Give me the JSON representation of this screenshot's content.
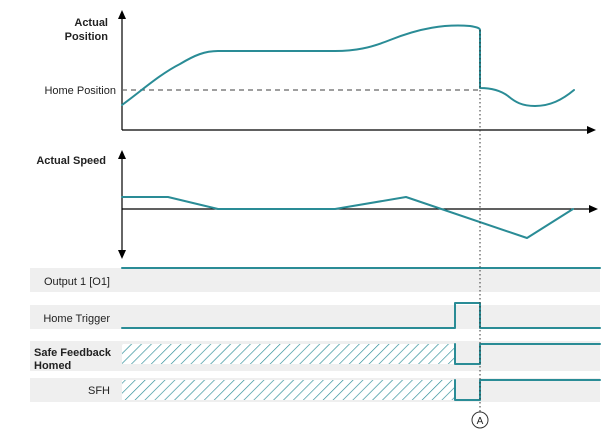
{
  "colors": {
    "signal": "#2a8c96",
    "band": "#efefef",
    "axis": "#000000",
    "dashed": "#666666",
    "hatch": "#2a8c96"
  },
  "position_chart": {
    "ylabel_line1": "Actual",
    "ylabel_line2": "Position",
    "ref_label": "Home Position"
  },
  "speed_chart": {
    "ylabel": "Actual Speed"
  },
  "rows": {
    "output": "Output 1 [O1]",
    "trigger": "Home Trigger",
    "sfh_homed_line1": "Safe Feedback",
    "sfh_homed_line2": "Homed",
    "sfh": "SFH"
  },
  "marker": {
    "label": "A"
  }
}
